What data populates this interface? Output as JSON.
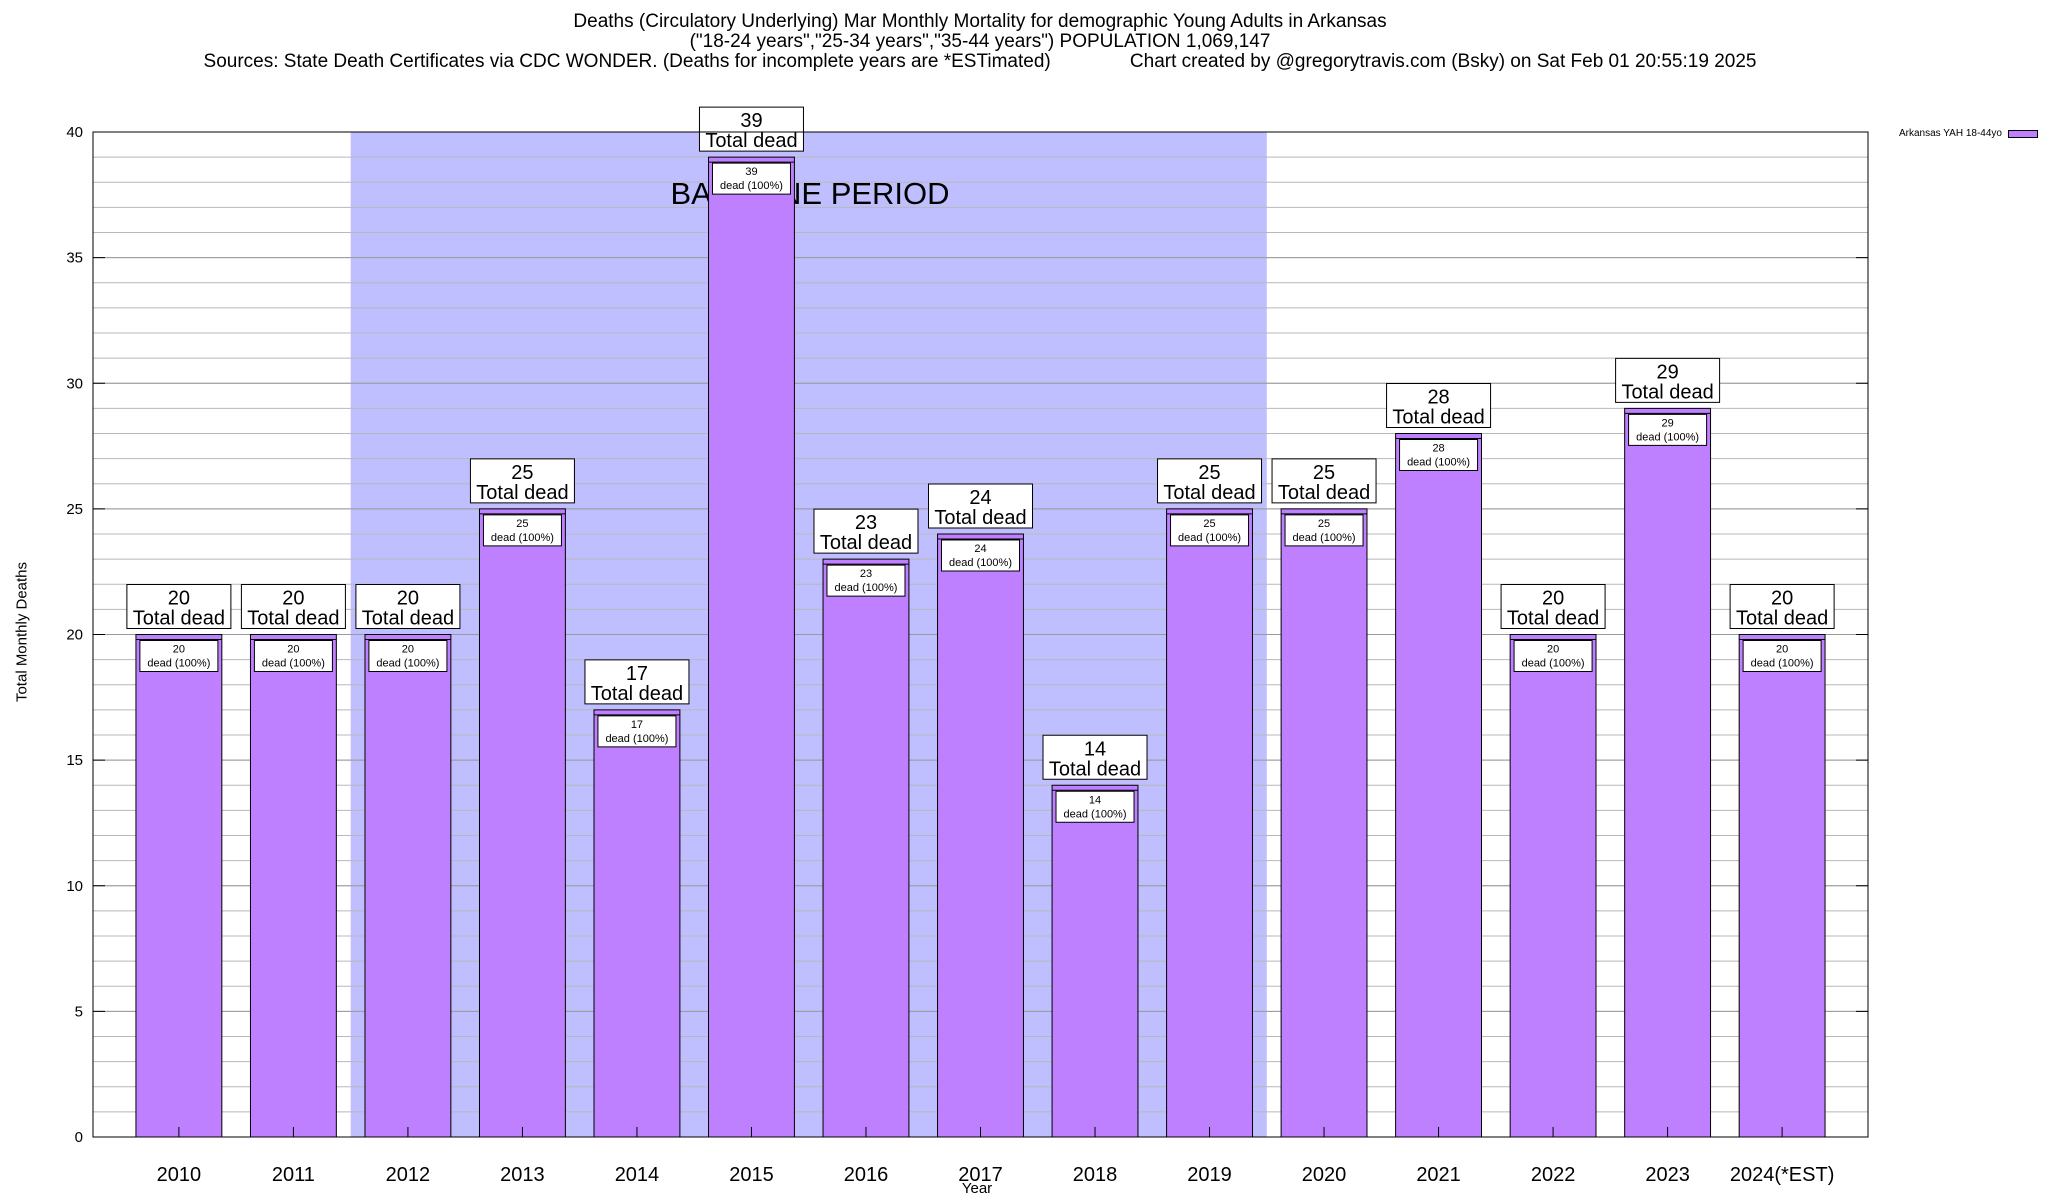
{
  "chart_data": {
    "type": "bar",
    "title_lines": [
      "Deaths (Circulatory Underlying) Mar Monthly Mortality for demographic Young Adults in Arkansas",
      "(\"18-24 years\",\"25-34 years\",\"35-44 years\") POPULATION 1,069,147",
      "Sources: State Death Certificates via CDC WONDER. (Deaths for incomplete years are *ESTimated)               Chart created by @gregorytravis.com (Bsky) on Sat Feb 01 20:55:19 2025"
    ],
    "xlabel": "Year",
    "ylabel": "Total Monthly Deaths",
    "categories": [
      "2010",
      "2011",
      "2012",
      "2013",
      "2014",
      "2015",
      "2016",
      "2017",
      "2018",
      "2019",
      "2020",
      "2021",
      "2022",
      "2023",
      "2024(*EST)"
    ],
    "values": [
      20,
      20,
      20,
      25,
      17,
      39,
      23,
      24,
      14,
      25,
      25,
      28,
      20,
      29,
      20
    ],
    "ylim": [
      0,
      40
    ],
    "yticks": [
      0,
      5,
      10,
      15,
      20,
      25,
      30,
      35,
      40
    ],
    "minor_grid_step": 1,
    "grid": true,
    "legend": {
      "position": "top-right",
      "entries": [
        "Arkansas YAH 18-44yo"
      ]
    },
    "series": [
      {
        "name": "Arkansas YAH 18-44yo",
        "color": "#bf80ff"
      }
    ],
    "total_label": "Total dead",
    "inner_label": "dead (100%)",
    "baseline": {
      "label": "BASELINE PERIOD",
      "start": "2012",
      "end": "2019",
      "color": "#bfbfff"
    }
  }
}
